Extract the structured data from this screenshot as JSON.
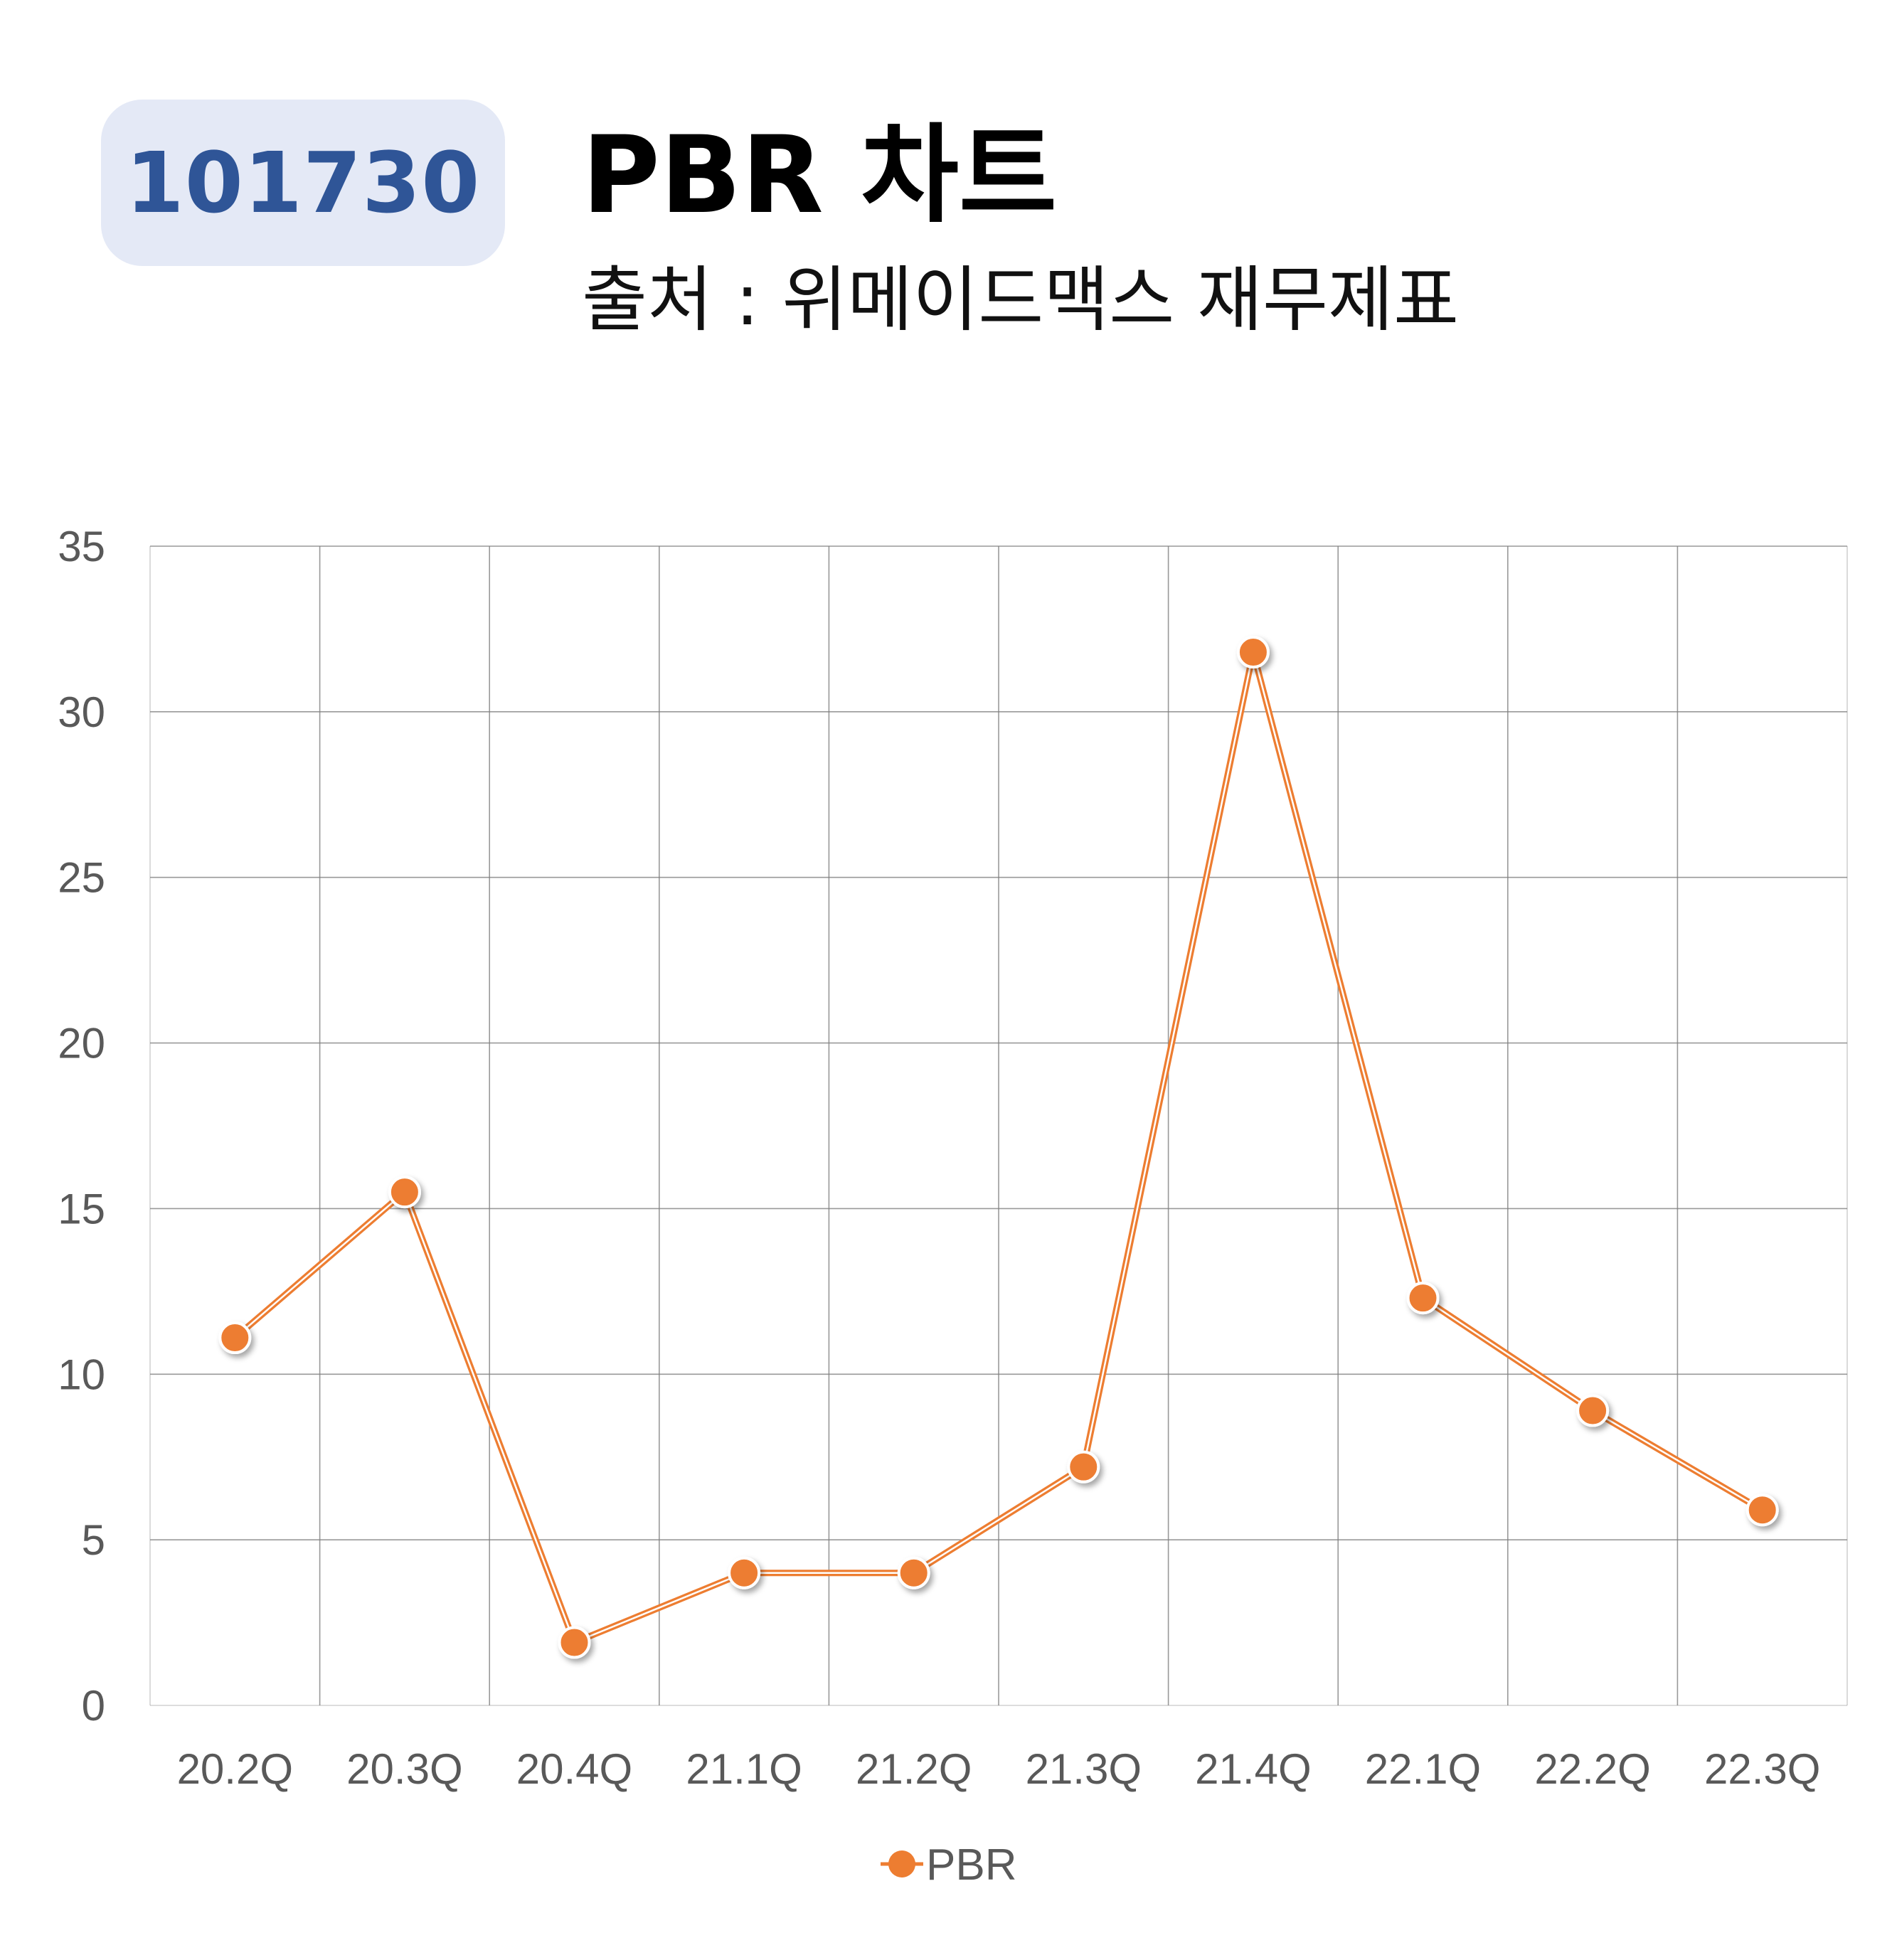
{
  "header": {
    "code": "101730",
    "title": "PBR 차트",
    "subtitle": "출처 : 위메이드맥스 재무제표"
  },
  "colors": {
    "badge_bg": "#e4e9f6",
    "badge_text": "#2f5597",
    "series": "#ed7d31",
    "grid": "#808080",
    "tick_text": "#595959"
  },
  "chart_data": {
    "type": "line",
    "title": "",
    "xlabel": "",
    "ylabel": "",
    "categories": [
      "20.2Q",
      "20.3Q",
      "20.4Q",
      "21.1Q",
      "21.2Q",
      "21.3Q",
      "21.4Q",
      "22.1Q",
      "22.2Q",
      "22.3Q"
    ],
    "series": [
      {
        "name": "PBR",
        "values": [
          11.1,
          15.5,
          1.9,
          4.0,
          4.0,
          7.2,
          31.8,
          12.3,
          8.9,
          5.9
        ]
      }
    ],
    "ylim": [
      0,
      35
    ],
    "yticks": [
      0,
      5,
      10,
      15,
      20,
      25,
      30,
      35
    ],
    "grid": true,
    "legend": "bottom",
    "markers": "circle"
  }
}
